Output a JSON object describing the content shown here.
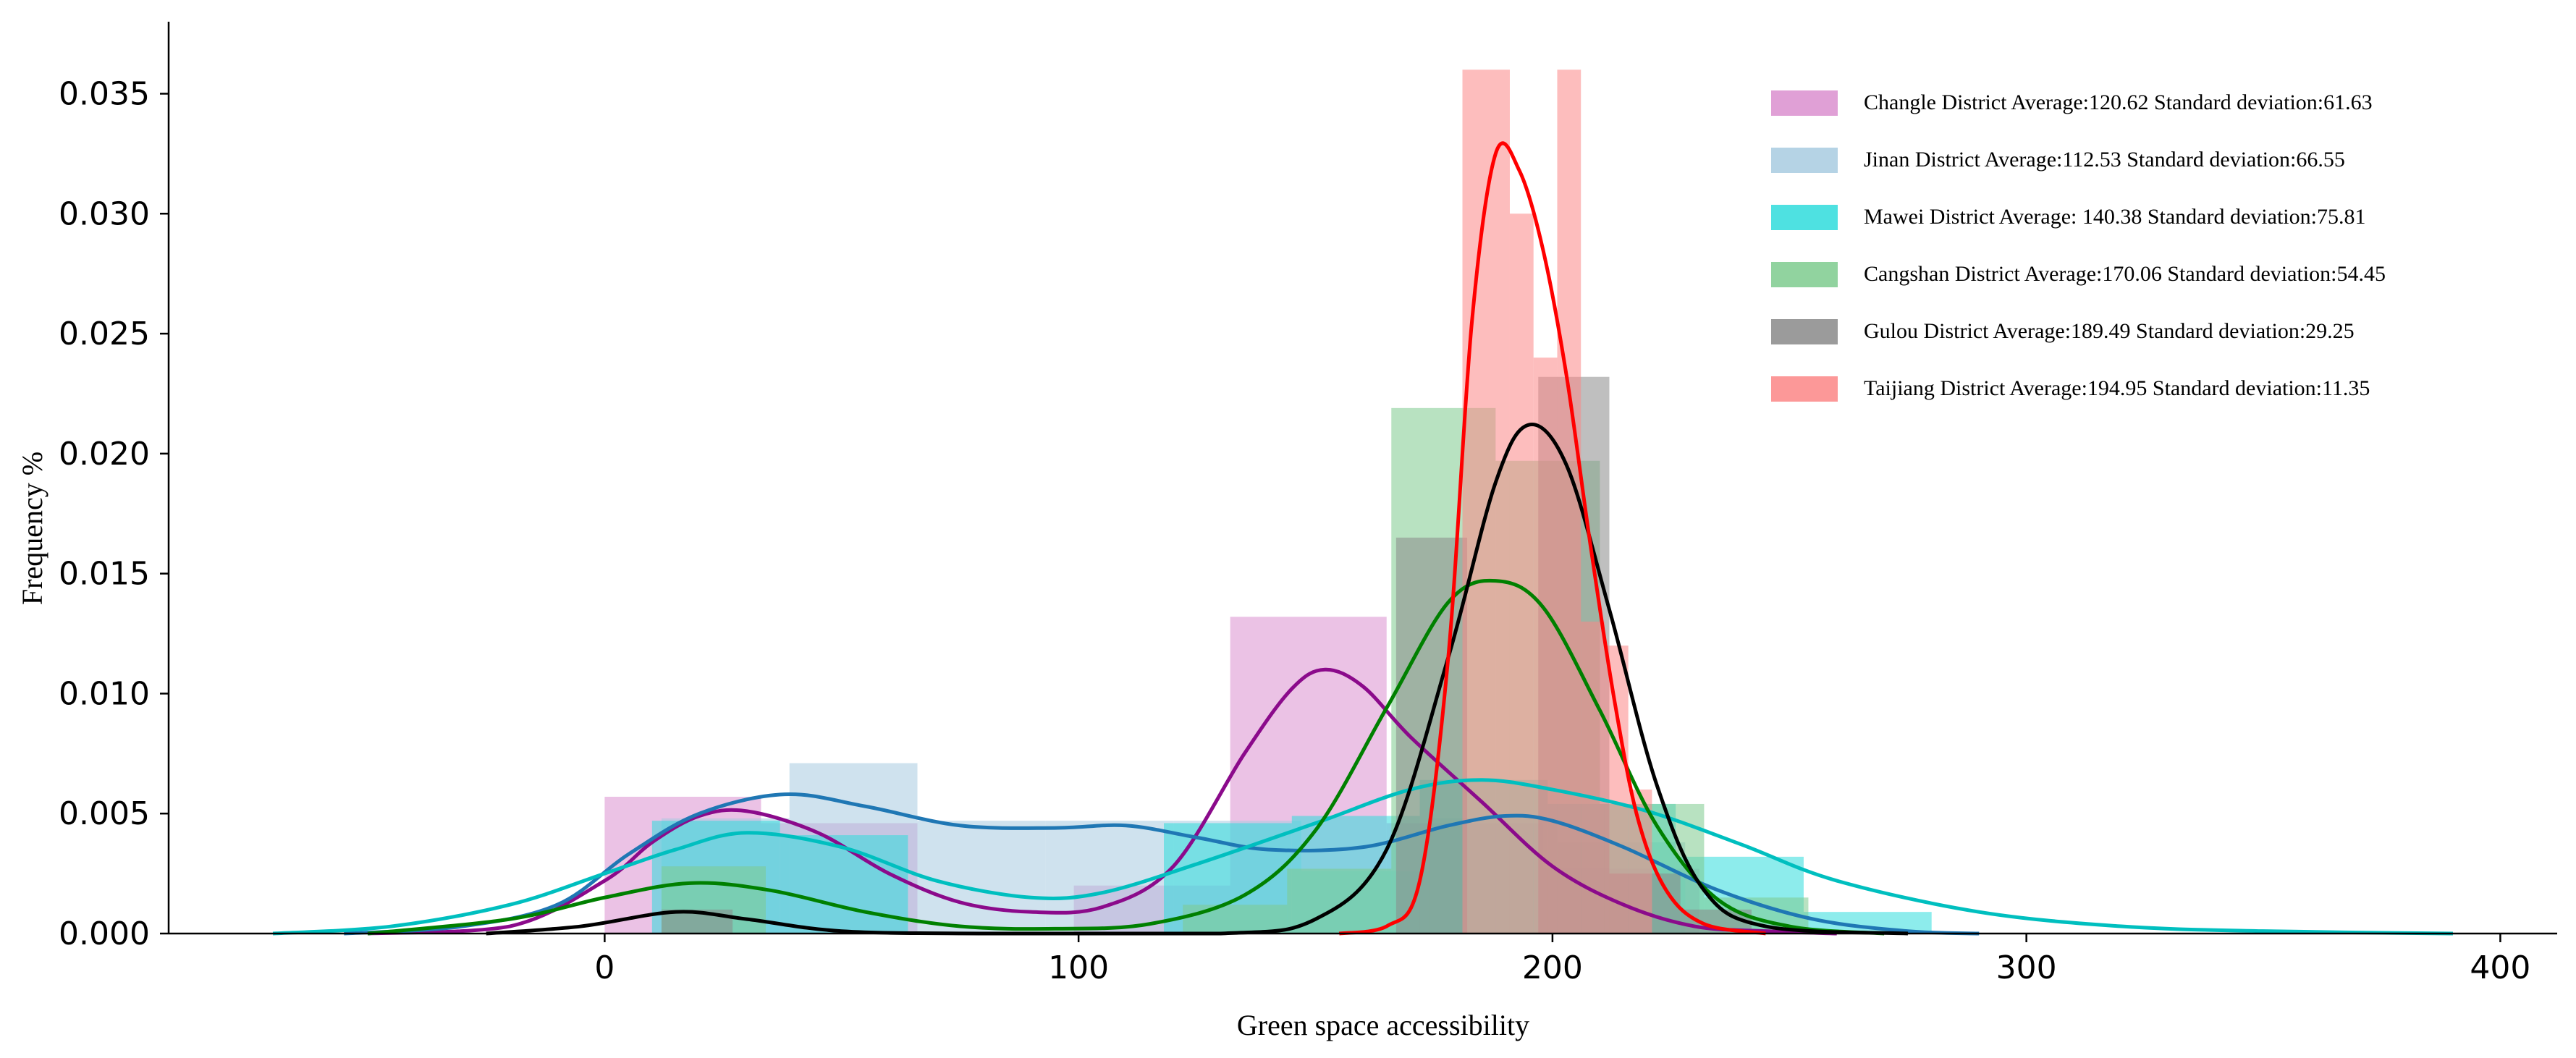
{
  "chart_data": {
    "type": "histogram-kde",
    "title": "",
    "xlabel": "Green space accessibility",
    "ylabel": "Frequency %",
    "xlim": [
      -92,
      412
    ],
    "ylim": [
      0,
      0.038
    ],
    "xticks": [
      0,
      100,
      200,
      300,
      400
    ],
    "xtick_labels": [
      "0",
      "100",
      "200",
      "300",
      "400"
    ],
    "yticks": [
      0.0,
      0.005,
      0.01,
      0.015,
      0.02,
      0.025,
      0.03,
      0.035
    ],
    "ytick_labels": [
      "0.000",
      "0.005",
      "0.010",
      "0.015",
      "0.020",
      "0.025",
      "0.030",
      "0.035"
    ],
    "legend_position": "top-right",
    "series": [
      {
        "name": "Changle District Average:120.62 Standard deviation:61.63",
        "color": "#b0209f",
        "bar_color": "#da8fcf",
        "bins": [
          [
            0,
            33,
            0.0057
          ],
          [
            33,
            66,
            0.0046
          ],
          [
            66,
            99,
            0.0
          ],
          [
            99,
            132,
            0.002
          ],
          [
            132,
            165,
            0.0132
          ],
          [
            165,
            198,
            0.0046
          ],
          [
            198,
            231,
            0.0027
          ]
        ],
        "kde": [
          [
            -50,
            0
          ],
          [
            -20,
            0.0003
          ],
          [
            0,
            0.0022
          ],
          [
            10,
            0.0038
          ],
          [
            20,
            0.0049
          ],
          [
            30,
            0.0051
          ],
          [
            45,
            0.0042
          ],
          [
            60,
            0.0025
          ],
          [
            75,
            0.0013
          ],
          [
            90,
            0.0009
          ],
          [
            105,
            0.0011
          ],
          [
            120,
            0.0028
          ],
          [
            135,
            0.0075
          ],
          [
            145,
            0.0102
          ],
          [
            152,
            0.011
          ],
          [
            160,
            0.0103
          ],
          [
            170,
            0.0082
          ],
          [
            185,
            0.0055
          ],
          [
            200,
            0.0028
          ],
          [
            215,
            0.0012
          ],
          [
            230,
            0.0003
          ],
          [
            245,
            0.0001
          ],
          [
            260,
            0
          ]
        ],
        "kde_color": "#8b0a8b"
      },
      {
        "name": "Jinan District Average:112.53 Standard deviation:66.55",
        "color": "#1f77b4",
        "bar_color": "#a8cbe0",
        "bins": [
          [
            12,
            39,
            0.0048
          ],
          [
            39,
            66,
            0.0071
          ],
          [
            66,
            93,
            0.0047
          ],
          [
            93,
            120,
            0.0047
          ],
          [
            120,
            147,
            0.0047
          ],
          [
            147,
            174,
            0.0026
          ],
          [
            174,
            201,
            0.0048
          ],
          [
            201,
            228,
            0.0038
          ]
        ],
        "kde": [
          [
            -55,
            0
          ],
          [
            -30,
            0.0003
          ],
          [
            -10,
            0.0012
          ],
          [
            5,
            0.0033
          ],
          [
            20,
            0.005
          ],
          [
            38,
            0.0058
          ],
          [
            55,
            0.0053
          ],
          [
            75,
            0.0045
          ],
          [
            95,
            0.0044
          ],
          [
            110,
            0.0045
          ],
          [
            125,
            0.004
          ],
          [
            140,
            0.0035
          ],
          [
            160,
            0.0036
          ],
          [
            178,
            0.0045
          ],
          [
            190,
            0.0049
          ],
          [
            200,
            0.0047
          ],
          [
            215,
            0.0036
          ],
          [
            235,
            0.0018
          ],
          [
            255,
            0.0006
          ],
          [
            275,
            0.0001
          ],
          [
            290,
            0
          ]
        ],
        "kde_color": "#1f77b4"
      },
      {
        "name": "Mawei District Average:  140.38  Standard deviation:75.81",
        "color": "#00cccc",
        "bar_color": "#2fdcdc",
        "bins": [
          [
            10,
            37,
            0.0047
          ],
          [
            37,
            64,
            0.0041
          ],
          [
            64,
            91,
            0.0
          ],
          [
            91,
            118,
            0.0
          ],
          [
            118,
            145,
            0.0046
          ],
          [
            145,
            172,
            0.0049
          ],
          [
            172,
            199,
            0.0064
          ],
          [
            199,
            226,
            0.0054
          ],
          [
            226,
            253,
            0.0032
          ],
          [
            253,
            280,
            0.0009
          ]
        ],
        "kde": [
          [
            -70,
            0
          ],
          [
            -45,
            0.0003
          ],
          [
            -20,
            0.0012
          ],
          [
            0,
            0.0025
          ],
          [
            15,
            0.0035
          ],
          [
            30,
            0.0042
          ],
          [
            50,
            0.0036
          ],
          [
            70,
            0.0022
          ],
          [
            90,
            0.0015
          ],
          [
            105,
            0.0017
          ],
          [
            125,
            0.0029
          ],
          [
            150,
            0.0046
          ],
          [
            170,
            0.006
          ],
          [
            185,
            0.0064
          ],
          [
            200,
            0.006
          ],
          [
            220,
            0.0051
          ],
          [
            240,
            0.0037
          ],
          [
            260,
            0.0022
          ],
          [
            290,
            0.0009
          ],
          [
            320,
            0.0003
          ],
          [
            350,
            0.0001
          ],
          [
            390,
            0
          ]
        ],
        "kde_color": "#00bfbf"
      },
      {
        "name": "Cangshan  District Average:170.06  Standard deviation:54.45",
        "color": "#2ca02c",
        "bar_color": "#7ecb8e",
        "bins": [
          [
            12,
            34,
            0.0028
          ],
          [
            34,
            56,
            0.0
          ],
          [
            56,
            78,
            0.0
          ],
          [
            78,
            100,
            0.0
          ],
          [
            100,
            122,
            0.0
          ],
          [
            122,
            144,
            0.0012
          ],
          [
            144,
            166,
            0.0027
          ],
          [
            166,
            188,
            0.0219
          ],
          [
            188,
            210,
            0.0197
          ],
          [
            210,
            232,
            0.0054
          ],
          [
            232,
            254,
            0.0015
          ]
        ],
        "kde": [
          [
            -50,
            0
          ],
          [
            -20,
            0.0006
          ],
          [
            0,
            0.0015
          ],
          [
            18,
            0.0021
          ],
          [
            35,
            0.0018
          ],
          [
            55,
            0.0009
          ],
          [
            75,
            0.0003
          ],
          [
            95,
            0.0002
          ],
          [
            115,
            0.0004
          ],
          [
            135,
            0.0016
          ],
          [
            150,
            0.0043
          ],
          [
            165,
            0.0094
          ],
          [
            178,
            0.0138
          ],
          [
            188,
            0.0147
          ],
          [
            198,
            0.0136
          ],
          [
            210,
            0.0093
          ],
          [
            222,
            0.0045
          ],
          [
            235,
            0.0014
          ],
          [
            250,
            0.0003
          ],
          [
            270,
            0
          ]
        ],
        "kde_color": "#008000"
      },
      {
        "name": "Gulou  District Average:189.49  Standard deviation:29.25",
        "color": "#555555",
        "bar_color": "#8a8a8a",
        "bins": [
          [
            12,
            27,
            0.001
          ],
          [
            27,
            42,
            0.0
          ],
          [
            42,
            57,
            0.0
          ],
          [
            57,
            72,
            0.0
          ],
          [
            72,
            87,
            0.0
          ],
          [
            87,
            102,
            0.0
          ],
          [
            102,
            117,
            0.0
          ],
          [
            117,
            132,
            0.0
          ],
          [
            132,
            147,
            0.0
          ],
          [
            147,
            162,
            0.0
          ],
          [
            162,
            177,
            0.0
          ],
          [
            167,
            182,
            0.0165
          ],
          [
            182,
            197,
            0.0
          ],
          [
            197,
            212,
            0.0232
          ],
          [
            212,
            227,
            0.0025
          ],
          [
            227,
            242,
            0.001
          ]
        ],
        "kde": [
          [
            -25,
            0
          ],
          [
            -5,
            0.0003
          ],
          [
            15,
            0.0009
          ],
          [
            30,
            0.0006
          ],
          [
            50,
            0.0001
          ],
          [
            80,
            0
          ],
          [
            130,
            0.0
          ],
          [
            150,
            0.0006
          ],
          [
            165,
            0.0035
          ],
          [
            178,
            0.0115
          ],
          [
            188,
            0.0188
          ],
          [
            195,
            0.0212
          ],
          [
            203,
            0.0195
          ],
          [
            212,
            0.0135
          ],
          [
            222,
            0.0062
          ],
          [
            232,
            0.0018
          ],
          [
            245,
            0.0003
          ],
          [
            275,
            0
          ]
        ],
        "kde_color": "#000000"
      },
      {
        "name": "Taijiang  District Average:194.95  Standard deviation:11.35",
        "color": "#ff4c4c",
        "bar_color": "#fb8686",
        "bins": [
          [
            181,
            191,
            0.036
          ],
          [
            191,
            196,
            0.03
          ],
          [
            196,
            201,
            0.024
          ],
          [
            201,
            206,
            0.036
          ],
          [
            206,
            211,
            0.013
          ],
          [
            211,
            216,
            0.012
          ],
          [
            216,
            221,
            0.006
          ],
          [
            221,
            226,
            0.0
          ]
        ],
        "kde": [
          [
            155,
            0
          ],
          [
            165,
            0.0003
          ],
          [
            172,
            0.0022
          ],
          [
            178,
            0.0115
          ],
          [
            183,
            0.0255
          ],
          [
            188,
            0.0325
          ],
          [
            193,
            0.0318
          ],
          [
            198,
            0.0285
          ],
          [
            203,
            0.0232
          ],
          [
            208,
            0.0162
          ],
          [
            213,
            0.0098
          ],
          [
            218,
            0.0048
          ],
          [
            224,
            0.0018
          ],
          [
            232,
            0.0004
          ],
          [
            245,
            0
          ]
        ],
        "kde_color": "#ff0000"
      }
    ]
  }
}
